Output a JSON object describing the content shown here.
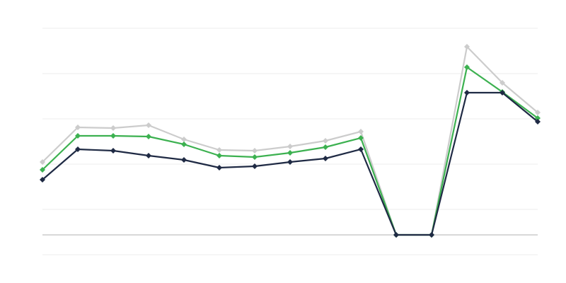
{
  "chart_data": {
    "type": "line",
    "categories": [
      null,
      null,
      null,
      null,
      null,
      null,
      null,
      null,
      null,
      null,
      null,
      null,
      null,
      null,
      null
    ],
    "series": [
      {
        "color": "#cccccc",
        "values": [
          103,
          152,
          151,
          155,
          135,
          120,
          119,
          125,
          133,
          146,
          0,
          0,
          266,
          215,
          173
        ]
      },
      {
        "color": "#3cb150",
        "values": [
          92,
          140,
          140,
          139,
          128,
          112,
          110,
          116,
          124,
          137,
          0,
          0,
          237,
          202,
          165
        ]
      },
      {
        "color": "#1f2a44",
        "values": [
          78,
          121,
          119,
          112,
          106,
          95,
          97,
          103,
          108,
          121,
          0,
          0,
          201,
          201,
          160
        ]
      }
    ],
    "ylim": [
      -28,
      292
    ],
    "yticks": [
      -28,
      36,
      100,
      164,
      228,
      292
    ],
    "grid": true
  }
}
